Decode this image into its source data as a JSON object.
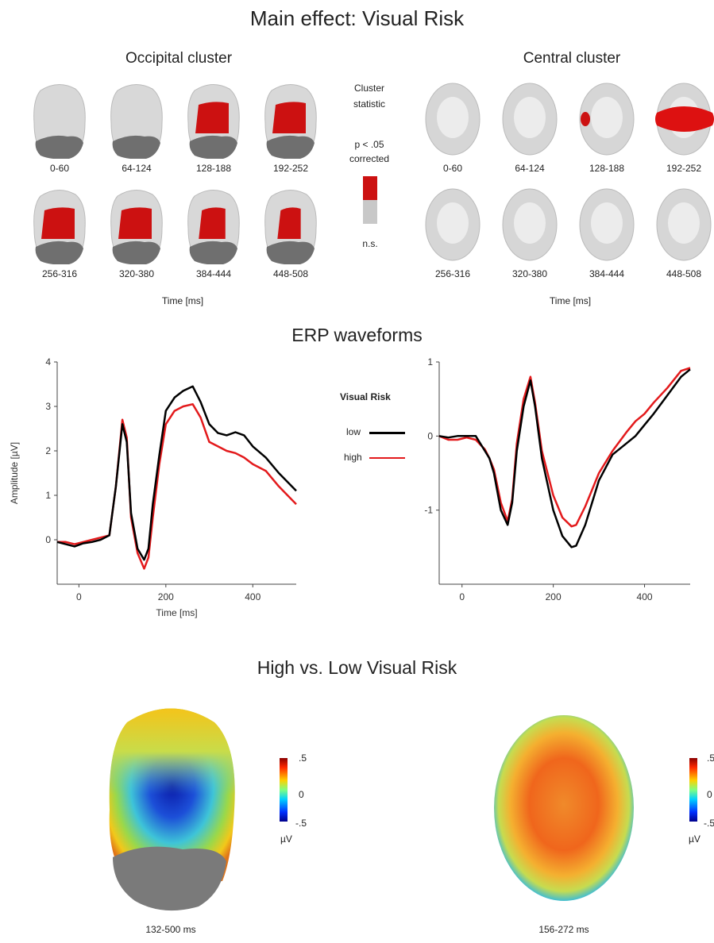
{
  "titles": {
    "main": "Main effect: Visual Risk",
    "occipital": "Occipital cluster",
    "central": "Central cluster",
    "erp": "ERP waveforms",
    "contrast": "High vs. Low Visual Risk"
  },
  "cluster_legend": {
    "title_line1": "Cluster",
    "title_line2": "statistic",
    "sig_line1": "p < .05",
    "sig_line2": "corrected",
    "ns": "n.s.",
    "sig_color": "#cc1111",
    "ns_color": "#c8c8c8"
  },
  "time_windows": [
    "0-60",
    "64-124",
    "128-188",
    "192-252",
    "256-316",
    "320-380",
    "384-444",
    "448-508"
  ],
  "time_axis_label": "Time [ms]",
  "occipital_significant": [
    0,
    0,
    0.45,
    0.45,
    0.45,
    0.45,
    0.35,
    0.3
  ],
  "central_significant": [
    0,
    0,
    0.15,
    0.9,
    0,
    0,
    0,
    0
  ],
  "erp_legend": {
    "title": "Visual Risk",
    "low": "low",
    "high": "high",
    "low_color": "#000000",
    "high_color": "#e31a1c"
  },
  "chart_data": [
    {
      "type": "line",
      "ylabel": "Amplitude [µV]",
      "xlabel": "Time [ms]",
      "xlim": [
        -50,
        500
      ],
      "ylim": [
        -1,
        4
      ],
      "xticks": [
        0,
        200,
        400
      ],
      "yticks": [
        0,
        1,
        2,
        3,
        4
      ],
      "series": [
        {
          "name": "low",
          "x": [
            -50,
            -30,
            -10,
            10,
            30,
            50,
            70,
            85,
            100,
            110,
            120,
            135,
            150,
            160,
            170,
            185,
            200,
            220,
            240,
            262,
            280,
            300,
            320,
            340,
            360,
            380,
            400,
            430,
            460,
            490,
            500
          ],
          "values": [
            -0.05,
            -0.1,
            -0.15,
            -0.08,
            -0.05,
            0.0,
            0.1,
            1.2,
            2.6,
            2.2,
            0.6,
            -0.2,
            -0.45,
            -0.2,
            0.8,
            1.9,
            2.9,
            3.2,
            3.35,
            3.45,
            3.1,
            2.6,
            2.4,
            2.35,
            2.42,
            2.35,
            2.1,
            1.85,
            1.5,
            1.2,
            1.1
          ]
        },
        {
          "name": "high",
          "x": [
            -50,
            -30,
            -10,
            10,
            30,
            50,
            70,
            85,
            100,
            110,
            120,
            135,
            150,
            160,
            170,
            185,
            200,
            220,
            240,
            262,
            280,
            300,
            320,
            340,
            360,
            380,
            400,
            430,
            460,
            490,
            500
          ],
          "values": [
            -0.05,
            -0.05,
            -0.1,
            -0.05,
            0.0,
            0.05,
            0.1,
            1.2,
            2.7,
            2.3,
            0.5,
            -0.3,
            -0.65,
            -0.4,
            0.5,
            1.7,
            2.6,
            2.9,
            3.0,
            3.05,
            2.75,
            2.2,
            2.1,
            2.0,
            1.95,
            1.85,
            1.7,
            1.55,
            1.2,
            0.9,
            0.8
          ]
        }
      ]
    },
    {
      "type": "line",
      "ylabel": "",
      "xlabel": "",
      "xlim": [
        -50,
        500
      ],
      "ylim": [
        -2,
        1
      ],
      "xticks": [
        0,
        200,
        400
      ],
      "yticks": [
        -1,
        0,
        1
      ],
      "series": [
        {
          "name": "low",
          "x": [
            -50,
            -30,
            -10,
            10,
            30,
            50,
            60,
            70,
            85,
            100,
            110,
            120,
            135,
            150,
            160,
            175,
            200,
            220,
            240,
            250,
            270,
            300,
            330,
            360,
            380,
            400,
            420,
            450,
            480,
            500
          ],
          "values": [
            0.0,
            -0.02,
            0.0,
            0.0,
            0.0,
            -0.2,
            -0.3,
            -0.5,
            -1.0,
            -1.2,
            -0.9,
            -0.2,
            0.4,
            0.75,
            0.4,
            -0.3,
            -1.0,
            -1.35,
            -1.5,
            -1.48,
            -1.2,
            -0.6,
            -0.25,
            -0.1,
            0.0,
            0.15,
            0.3,
            0.55,
            0.8,
            0.9
          ]
        },
        {
          "name": "high",
          "x": [
            -50,
            -30,
            -10,
            10,
            30,
            50,
            60,
            70,
            85,
            100,
            110,
            120,
            135,
            150,
            160,
            175,
            200,
            220,
            240,
            250,
            270,
            300,
            330,
            360,
            380,
            400,
            420,
            450,
            480,
            500
          ],
          "values": [
            0.0,
            -0.05,
            -0.05,
            -0.02,
            -0.05,
            -0.18,
            -0.3,
            -0.45,
            -0.9,
            -1.15,
            -0.85,
            -0.1,
            0.5,
            0.8,
            0.45,
            -0.2,
            -0.8,
            -1.1,
            -1.22,
            -1.2,
            -0.95,
            -0.5,
            -0.2,
            0.05,
            0.2,
            0.3,
            0.45,
            0.65,
            0.88,
            0.92
          ]
        }
      ]
    }
  ],
  "topo": {
    "left_window": "132-500 ms",
    "right_window": "156-272 ms",
    "colorbar_max": ".5",
    "colorbar_mid": "0",
    "colorbar_min": "-.5",
    "colorbar_unit": "µV",
    "right_max": ".5",
    "right_mid": "0",
    "right_min": "-.5"
  }
}
